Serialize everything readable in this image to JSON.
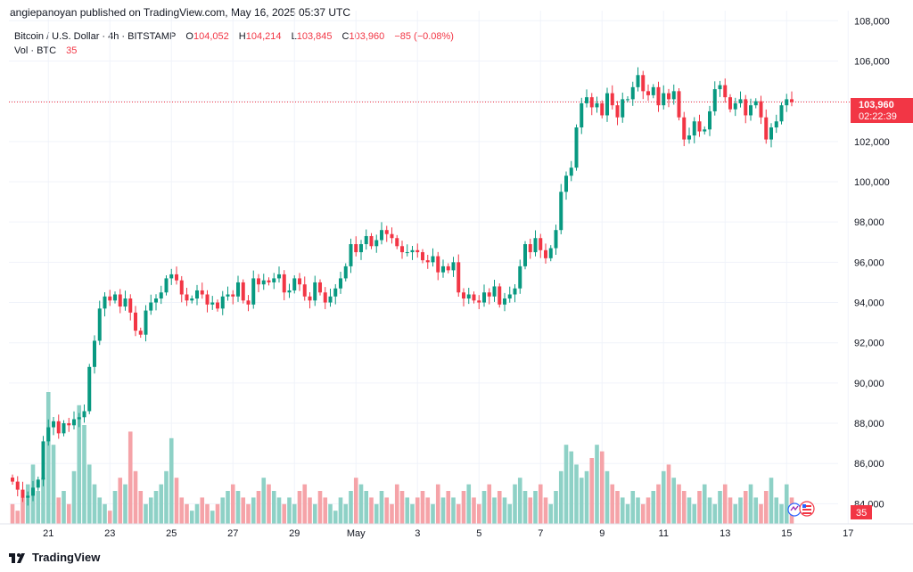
{
  "header": {
    "publisher": "angiepanoyan published on TradingView.com, May 16, 2025 05:37 UTC"
  },
  "legend": {
    "symbol": "Bitcoin / U.S. Dollar · 4h · BITSTAMP",
    "open_label": "O",
    "open": "104,052",
    "high_label": "H",
    "high": "104,214",
    "low_label": "L",
    "low": "103,845",
    "close_label": "C",
    "close": "103,960",
    "change": "−85 (−0.08%)",
    "vol_label": "Vol · BTC",
    "vol": "35"
  },
  "price_tag": {
    "price": "103,960",
    "countdown": "02:22:39"
  },
  "vol_tag": "35",
  "footer": {
    "brand": "TradingView"
  },
  "colors": {
    "up": "#089981",
    "down": "#f23645",
    "vol_up": "#8ed1c6",
    "vol_down": "#f5a3a8",
    "grid": "#f0f3fa"
  },
  "chart_data": {
    "type": "candlestick",
    "symbol": "Bitcoin / U.S. Dollar",
    "interval": "4h",
    "exchange": "BITSTAMP",
    "ylim": [
      83000,
      108500
    ],
    "y_ticks": [
      "84,000",
      "86,000",
      "88,000",
      "90,000",
      "92,000",
      "94,000",
      "96,000",
      "98,000",
      "100,000",
      "102,000",
      "104,000",
      "106,000",
      "108,000"
    ],
    "x_ticks": [
      {
        "label": "21",
        "index": 7
      },
      {
        "label": "23",
        "index": 19
      },
      {
        "label": "25",
        "index": 31
      },
      {
        "label": "27",
        "index": 43
      },
      {
        "label": "29",
        "index": 55
      },
      {
        "label": "May",
        "index": 67
      },
      {
        "label": "3",
        "index": 79
      },
      {
        "label": "5",
        "index": 91
      },
      {
        "label": "7",
        "index": 103
      },
      {
        "label": "9",
        "index": 115
      },
      {
        "label": "11",
        "index": 127
      },
      {
        "label": "13",
        "index": 139
      },
      {
        "label": "15",
        "index": 151
      },
      {
        "label": "17",
        "index": 163
      }
    ],
    "last_price": 103960,
    "candle_closes": [
      85100,
      84700,
      84300,
      84400,
      84800,
      85200,
      87100,
      87800,
      88100,
      87500,
      88000,
      87900,
      88200,
      88300,
      88600,
      90800,
      92100,
      93700,
      94300,
      94100,
      94400,
      93800,
      94200,
      93500,
      92600,
      92400,
      93600,
      94000,
      94200,
      94500,
      95200,
      95400,
      95100,
      94400,
      94100,
      94200,
      94600,
      94400,
      93900,
      94000,
      93700,
      94300,
      94400,
      94300,
      95000,
      94100,
      93900,
      95200,
      94900,
      95100,
      95000,
      95200,
      95400,
      94500,
      94600,
      95200,
      94900,
      94300,
      94100,
      95000,
      94500,
      94000,
      94300,
      94700,
      95200,
      95800,
      96900,
      96500,
      96900,
      97300,
      96800,
      97100,
      97600,
      97400,
      97200,
      96800,
      96500,
      96500,
      96600,
      96500,
      96100,
      96000,
      96300,
      95500,
      95800,
      95600,
      96000,
      94500,
      94200,
      94400,
      94100,
      94000,
      94500,
      94300,
      94800,
      93900,
      94200,
      94400,
      94700,
      95800,
      96900,
      96500,
      97200,
      96600,
      96200,
      96700,
      97600,
      99500,
      100300,
      100700,
      102700,
      103900,
      104200,
      103700,
      103900,
      103300,
      104400,
      103800,
      103200,
      104100,
      104100,
      104700,
      105300,
      104500,
      104300,
      104700,
      103800,
      104400,
      104100,
      104500,
      103200,
      102100,
      102300,
      103000,
      102500,
      102600,
      103500,
      104600,
      104800,
      104200,
      103600,
      103900,
      104100,
      103300,
      103800,
      104000,
      103200,
      102100,
      102700,
      103000,
      103800,
      104100,
      103960
    ],
    "volumes": [
      3,
      2,
      4,
      6,
      9,
      5,
      7,
      20,
      12,
      4,
      5,
      3,
      8,
      18,
      15,
      9,
      6,
      4,
      3,
      2,
      5,
      7,
      6,
      14,
      8,
      5,
      3,
      4,
      5,
      6,
      8,
      13,
      7,
      4,
      3,
      2,
      3,
      4,
      3,
      2,
      3,
      4,
      5,
      6,
      5,
      4,
      3,
      4,
      5,
      7,
      6,
      5,
      4,
      3,
      4,
      3,
      5,
      6,
      4,
      3,
      5,
      4,
      3,
      2,
      4,
      3,
      5,
      7,
      6,
      5,
      4,
      3,
      5,
      4,
      3,
      6,
      5,
      4,
      3,
      4,
      5,
      4,
      3,
      6,
      4,
      5,
      4,
      3,
      5,
      6,
      4,
      3,
      5,
      6,
      4,
      5,
      4,
      3,
      6,
      7,
      5,
      4,
      5,
      6,
      4,
      3,
      5,
      8,
      12,
      11,
      9,
      7,
      8,
      10,
      12,
      11,
      8,
      6,
      5,
      4,
      3,
      5,
      4,
      3,
      4,
      5,
      6,
      8,
      9,
      7,
      6,
      5,
      4,
      3,
      5,
      6,
      4,
      3,
      5,
      6,
      4,
      3,
      4,
      5,
      6,
      4,
      3,
      5,
      7,
      4,
      3,
      6,
      35
    ]
  }
}
